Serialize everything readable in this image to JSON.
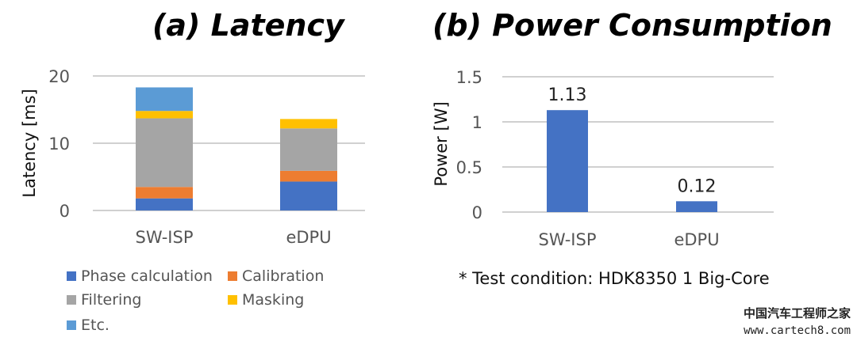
{
  "chart_data": [
    {
      "type": "bar",
      "stacked": true,
      "title": "(a) Latency",
      "ylabel": "Latency [ms]",
      "ylim": [
        0,
        20
      ],
      "yticks": [
        0,
        10,
        20
      ],
      "grid": true,
      "categories": [
        "SW-ISP",
        "eDPU"
      ],
      "series": [
        {
          "name": "Phase calculation",
          "color": "#4472c4",
          "values": [
            1.8,
            4.3
          ]
        },
        {
          "name": "Calibration",
          "color": "#ed7d31",
          "values": [
            1.7,
            1.6
          ]
        },
        {
          "name": "Filtering",
          "color": "#a5a5a5",
          "values": [
            10.2,
            6.3
          ]
        },
        {
          "name": "Masking",
          "color": "#ffc000",
          "values": [
            1.1,
            1.4
          ]
        },
        {
          "name": "Etc.",
          "color": "#5b9bd5",
          "values": [
            3.5,
            0
          ]
        }
      ],
      "legend": "bottom"
    },
    {
      "type": "bar",
      "title": "(b) Power Consumption",
      "ylabel": "Power [W]",
      "ylim": [
        0,
        1.5
      ],
      "yticks": [
        "0",
        "0.5",
        "1",
        "1.5"
      ],
      "grid": true,
      "categories": [
        "SW-ISP",
        "eDPU"
      ],
      "values": [
        1.13,
        0.12
      ],
      "data_labels": [
        "1.13",
        "0.12"
      ],
      "color": "#4472c4"
    }
  ],
  "note": "* Test condition: HDK8350 1 Big-Core",
  "watermark": {
    "cn": "中国汽车工程师之家",
    "url": "www.cartech8.com"
  }
}
